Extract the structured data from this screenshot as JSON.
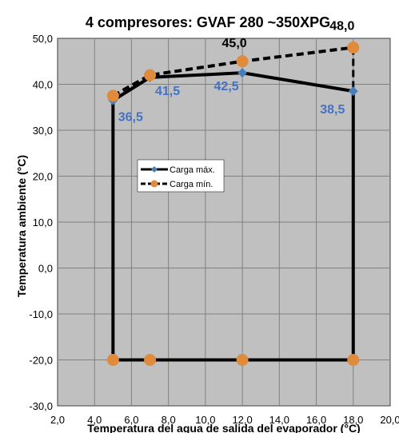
{
  "chart_data": {
    "type": "line",
    "title": "4 compresores: GVAF 280 ~350XPG",
    "xlabel": "Temperatura del agua de salida del evaporador (°C)",
    "ylabel": "Temperatura ambiente (°C)",
    "xlim": [
      2,
      20
    ],
    "ylim": [
      -30,
      50
    ],
    "x_ticks": [
      "2,0",
      "4,0",
      "6,0",
      "8,0",
      "10,0",
      "12,0",
      "14,0",
      "16,0",
      "18,0",
      "20,0"
    ],
    "y_ticks": [
      "50,0",
      "40,0",
      "30,0",
      "20,0",
      "10,0",
      "0,0",
      "-10,0",
      "-20,0",
      "-30,0"
    ],
    "grid": true,
    "legend_position": "center-left",
    "series": [
      {
        "name": "Carga máx.",
        "line_color": "#000000",
        "marker": "diamond",
        "marker_color": "#4a7ebb",
        "dashed": false,
        "points": [
          [
            5,
            -20
          ],
          [
            5,
            36.5
          ],
          [
            7,
            41.5
          ],
          [
            12,
            42.5
          ],
          [
            18,
            38.5
          ],
          [
            18,
            -20
          ],
          [
            5,
            -20
          ]
        ]
      },
      {
        "name": "Carga mín.",
        "line_color": "#000000",
        "marker": "circle",
        "marker_color": "#e08a3c",
        "dashed": true,
        "points": [
          [
            5,
            37.5
          ],
          [
            7,
            42
          ],
          [
            12,
            45
          ],
          [
            18,
            48
          ],
          [
            18,
            -20
          ],
          [
            12,
            -20
          ],
          [
            7,
            -20
          ],
          [
            5,
            -20
          ]
        ]
      }
    ],
    "data_labels": [
      {
        "text": "36,5",
        "x": 5,
        "y": 36.5,
        "color": "#4472c4"
      },
      {
        "text": "41,5",
        "x": 7,
        "y": 41.5,
        "color": "#4472c4"
      },
      {
        "text": "42,5",
        "x": 12,
        "y": 42.5,
        "color": "#4472c4"
      },
      {
        "text": "38,5",
        "x": 18,
        "y": 38.5,
        "color": "#4472c4"
      },
      {
        "text": "45,0",
        "x": 12,
        "y": 45,
        "color": "#000000"
      },
      {
        "text": "48,0",
        "x": 18,
        "y": 48,
        "color": "#000000"
      }
    ],
    "colors": {
      "plot_background": "#c0c0c0",
      "gridline": "#808080"
    }
  }
}
